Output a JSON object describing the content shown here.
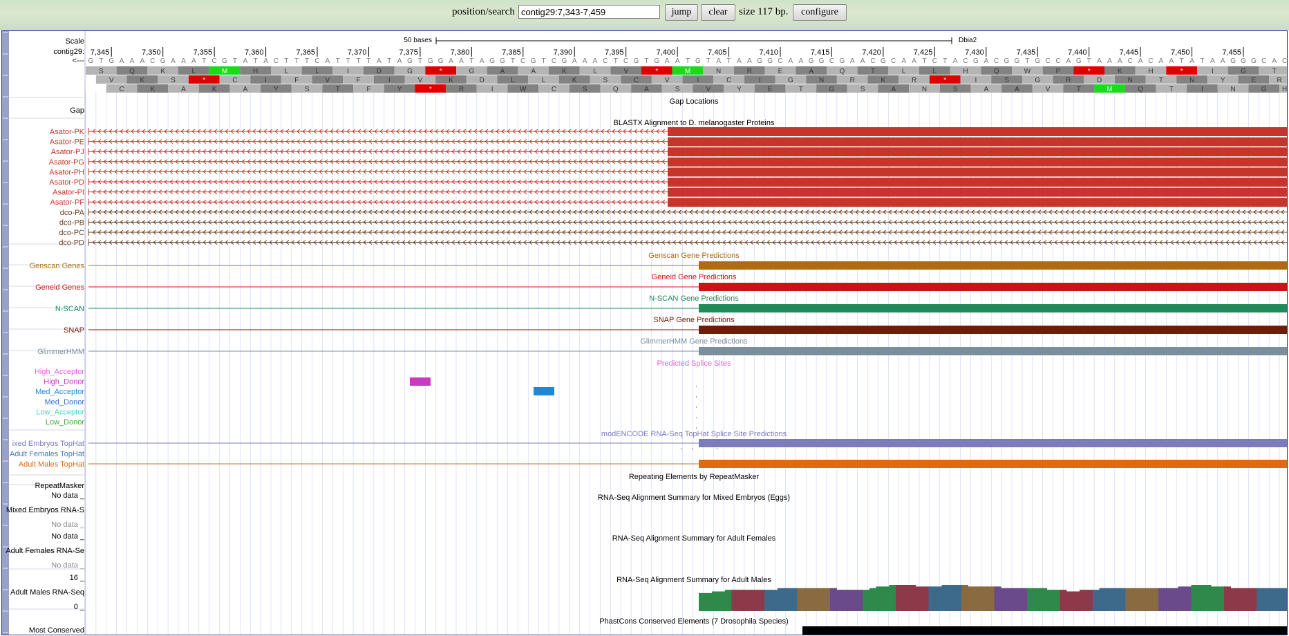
{
  "toolbar": {
    "position_label": "position/search",
    "position_value": "contig29:7,343-7,459",
    "jump_label": "jump",
    "clear_label": "clear",
    "size_text": "size 117 bp.",
    "configure_label": "configure"
  },
  "ruler": {
    "scale_label": "Scale",
    "contig_label": "contig29:",
    "strand_label": "<---",
    "bases_label": "50 bases",
    "assembly_label": "Dbia2",
    "ticks": [
      "7,345",
      "7,350",
      "7,355",
      "7,360",
      "7,365",
      "7,370",
      "7,375",
      "7,380",
      "7,385",
      "7,390",
      "7,395",
      "7,400",
      "7,405",
      "7,410",
      "7,415",
      "7,420",
      "7,425",
      "7,430",
      "7,435",
      "7,440",
      "7,445",
      "7,450",
      "7,455"
    ],
    "sequence": "GTGAAACGAAATCGTATACTTTCATTTTATAGTGGAATAGGTCGTCGAAACTCGTGAATGTATAAGGCAAGGCGAACGCAATCTACGACGGTGCCAGTAAACACAATATAAGGGCAC",
    "frames": [
      [
        "S",
        "Q",
        "K",
        "L",
        "M",
        "H",
        "L",
        "L",
        "I",
        "D",
        "G",
        "*",
        "G",
        "A",
        "A",
        "K",
        "L",
        "V",
        "*",
        "M",
        "N",
        "R",
        "E",
        "A",
        "Q",
        "T",
        "L",
        "L",
        "H",
        "Q",
        "W",
        "P",
        "*",
        "K",
        "H",
        "*",
        "I",
        "G",
        "T"
      ],
      [
        "V",
        "K",
        "S",
        "*",
        "C",
        "I",
        "F",
        "V",
        "F",
        "I",
        "V",
        "K",
        "D",
        "L",
        "L",
        "K",
        "S",
        "C",
        "V",
        "I",
        "C",
        "I",
        "G",
        "N",
        "R",
        "K",
        "R",
        "*",
        "I",
        "S",
        "G",
        "R",
        "D",
        "N",
        "T",
        "N",
        "Y",
        "E",
        "R",
        "S"
      ],
      [
        "C",
        "K",
        "A",
        "K",
        "A",
        "Y",
        "S",
        "T",
        "F",
        "Y",
        "*",
        "R",
        "I",
        "W",
        "C",
        "S",
        "Q",
        "A",
        "S",
        "V",
        "Y",
        "E",
        "T",
        "G",
        "S",
        "A",
        "N",
        "S",
        "A",
        "A",
        "V",
        "T",
        "M",
        "Q",
        "T",
        "I",
        "N",
        "G",
        "H"
      ]
    ]
  },
  "tracks": {
    "gap": {
      "label": "Gap",
      "title": "Gap Locations"
    },
    "blastx": {
      "title": "BLASTX Alignment to D. melanogaster Proteins",
      "red_items": [
        "Asator-PK",
        "Asator-PE",
        "Asator-PJ",
        "Asator-PG",
        "Asator-PH",
        "Asator-PD",
        "Asator-PI",
        "Asator-PF"
      ],
      "brown_items": [
        "dco-PA",
        "dco-PB",
        "dco-PC",
        "dco-PD"
      ],
      "red_color": "#c5352a",
      "brown_color": "#6b3d1e"
    },
    "predictions": [
      {
        "label": "Genscan Genes",
        "title": "Genscan Gene Predictions",
        "color": "#b06a10"
      },
      {
        "label": "Geneid Genes",
        "title": "Geneid Gene Predictions",
        "color": "#cc1212"
      },
      {
        "label": "N-SCAN",
        "title": "N-SCAN Gene Predictions",
        "color": "#1f8a5a"
      },
      {
        "label": "SNAP",
        "title": "SNAP Gene Predictions",
        "color": "#6b1e08"
      },
      {
        "label": "GlimmerHMM",
        "title": "GlimmerHMM Gene Predictions",
        "color": "#7a8e9c"
      }
    ],
    "splice": {
      "title": "Predicted Splice Sites",
      "items": [
        {
          "label": "High_Acceptor",
          "color": "#e25fd2"
        },
        {
          "label": "High_Donor",
          "color": "#c83ac2"
        },
        {
          "label": "Med_Acceptor",
          "color": "#1e88d8"
        },
        {
          "label": "Med_Donor",
          "color": "#2f6fd0"
        },
        {
          "label": "Low_Acceptor",
          "color": "#3ed8c8"
        },
        {
          "label": "Low_Donor",
          "color": "#3aa83a"
        }
      ]
    },
    "tophat": {
      "title": "modENCODE RNA-Seq TopHat Splice Site Predictions",
      "items": [
        {
          "label": "ixed Embryos TopHat",
          "color": "#7b7bbe"
        },
        {
          "label": "Adult Females TopHat",
          "color": "#4a78b6"
        },
        {
          "label": "Adult Males TopHat",
          "color": "#e06a10"
        }
      ]
    },
    "repeatmasker": {
      "label": "RepeatMasker",
      "title": "Repeating Elements by RepeatMasker"
    },
    "rnaseq": [
      {
        "title": "RNA-Seq Alignment Summary for Mixed Embryos (Eggs)",
        "label": "Mixed Embryos RNA-S",
        "top": "No data _",
        "bottom": "No data _"
      },
      {
        "title": "RNA-Seq Alignment Summary for Adult Females",
        "label": "Adult Females RNA-Se",
        "top": "No data _",
        "bottom": "No data _"
      },
      {
        "title": "RNA-Seq Alignment Summary for Adult Males",
        "label": "Adult Males RNA-Seq",
        "top": "16 _",
        "bottom": "0 _"
      }
    ],
    "males_coverage": [
      11,
      11,
      12,
      12,
      13,
      13,
      13,
      13,
      13,
      13,
      13,
      13,
      14,
      14,
      14,
      14,
      14,
      14,
      14,
      14,
      14,
      13,
      13,
      13,
      13,
      13,
      14,
      15,
      15,
      16,
      16,
      16,
      16,
      15,
      15,
      15,
      15,
      16,
      16,
      16,
      16,
      15,
      15,
      15,
      15,
      15,
      14,
      14,
      14,
      14,
      14,
      14,
      14,
      13,
      13,
      13,
      12,
      12,
      13,
      13,
      13,
      14,
      14,
      14,
      14,
      14,
      14,
      14,
      14,
      14,
      14,
      14,
      14,
      15,
      15,
      16,
      16,
      16,
      15,
      15,
      15,
      14,
      14,
      14,
      14,
      14,
      14,
      14,
      14,
      14
    ],
    "phastcons": {
      "title": "PhastCons Conserved Elements (7 Drosophila Species)",
      "label": "Most Conserved"
    }
  },
  "colors": {
    "codon_light": "#b4b4b4",
    "codon_dark": "#828282",
    "stop": "#e10000",
    "start": "#17dc17",
    "grid": "#c9d3f2"
  }
}
